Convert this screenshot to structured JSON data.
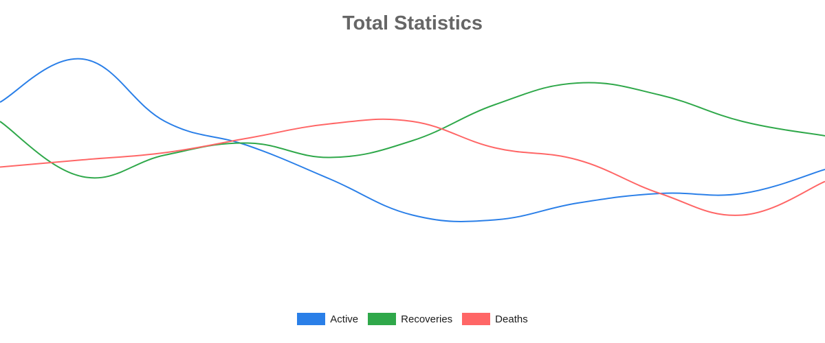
{
  "chart_data": {
    "type": "line",
    "title": "Total Statistics",
    "xlabel": "",
    "ylabel": "",
    "grid": false,
    "legend_position": "bottom",
    "ylim": [
      0,
      100
    ],
    "x": [
      0,
      1,
      2,
      3,
      4,
      5,
      6,
      7,
      8,
      9,
      10
    ],
    "series": [
      {
        "name": "Active",
        "color": "#2a7fe8",
        "values": [
          78,
          96,
          70,
          60,
          46,
          31,
          29,
          36,
          40,
          40,
          50
        ]
      },
      {
        "name": "Recoveries",
        "color": "#2fa84a",
        "values": [
          70,
          47,
          56,
          61,
          55,
          62,
          77,
          86,
          81,
          70,
          64
        ]
      },
      {
        "name": "Deaths",
        "color": "#ff6666",
        "values": [
          51,
          54,
          57,
          63,
          69,
          70,
          59,
          54,
          40,
          31,
          45
        ]
      }
    ]
  }
}
